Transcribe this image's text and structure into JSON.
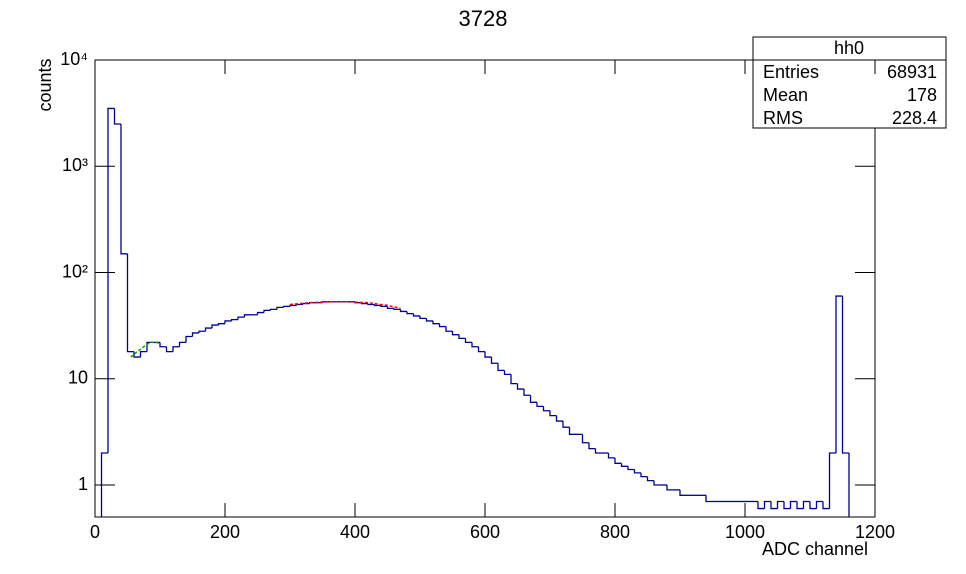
{
  "chart_data": {
    "type": "histogram",
    "title": "3728",
    "x_label": "ADC channel",
    "y_label": "counts",
    "bins": [
      0,
      10,
      20,
      30,
      40,
      50,
      60,
      70,
      80,
      90,
      100,
      110,
      120,
      130,
      140,
      150,
      160,
      170,
      180,
      190,
      200,
      210,
      220,
      230,
      240,
      250,
      260,
      270,
      280,
      290,
      300,
      310,
      320,
      330,
      340,
      350,
      360,
      370,
      380,
      390,
      400,
      410,
      420,
      430,
      440,
      450,
      460,
      470,
      480,
      490,
      500,
      510,
      520,
      530,
      540,
      550,
      560,
      570,
      580,
      590,
      600,
      610,
      620,
      630,
      640,
      650,
      660,
      670,
      680,
      690,
      700,
      710,
      720,
      730,
      740,
      750,
      760,
      770,
      780,
      790,
      800,
      810,
      820,
      830,
      840,
      850,
      860,
      870,
      880,
      890,
      900,
      910,
      920,
      930,
      940,
      950,
      960,
      970,
      980,
      990,
      1000,
      1010,
      1020,
      1030,
      1040,
      1050,
      1060,
      1070,
      1080,
      1090,
      1100,
      1110,
      1120,
      1130,
      1140,
      1150,
      1160,
      1170,
      1180,
      1190,
      1200
    ],
    "values": [
      0,
      2,
      3500,
      2500,
      150,
      18,
      16,
      18,
      22,
      22,
      20,
      18,
      20,
      22,
      25,
      27,
      28,
      30,
      32,
      33,
      35,
      36,
      38,
      40,
      40,
      42,
      44,
      45,
      47,
      48,
      49,
      50,
      51,
      52,
      52,
      53,
      53,
      53,
      53,
      53,
      52,
      51,
      50,
      49,
      48,
      46,
      45,
      43,
      41,
      39,
      37,
      35,
      33,
      31,
      28,
      26,
      24,
      22,
      20,
      18,
      16,
      14,
      12,
      11,
      9,
      8,
      7,
      6,
      5.5,
      5,
      4.5,
      4,
      3.5,
      3,
      3,
      2.5,
      2.2,
      2,
      2,
      1.8,
      1.6,
      1.5,
      1.4,
      1.3,
      1.2,
      1.1,
      1,
      1,
      0.9,
      0.9,
      0.8,
      0.8,
      0.8,
      0.8,
      0.7,
      0.7,
      0.7,
      0.7,
      0.7,
      0.7,
      0.7,
      0.7,
      0.6,
      0.7,
      0.6,
      0.7,
      0.6,
      0.7,
      0.6,
      0.7,
      0.6,
      0.7,
      0.6,
      2,
      60,
      2,
      0,
      0,
      0,
      0
    ],
    "color": "#000099",
    "fits": [
      {
        "color": "#ff0000",
        "x": [
          300,
          330,
          360,
          390,
          420,
          450,
          470
        ],
        "values": [
          50,
          52,
          53,
          53,
          52,
          49,
          46
        ]
      },
      {
        "color": "#00aa00",
        "x": [
          55,
          65,
          75,
          85,
          95,
          100
        ],
        "values": [
          16,
          18,
          20,
          22,
          22,
          21
        ]
      }
    ],
    "xlim": [
      0,
      1200
    ],
    "xticks": [
      0,
      200,
      400,
      600,
      800,
      1000,
      1200
    ],
    "ylim": [
      0.5,
      10000
    ],
    "log_y": true,
    "yticks": [
      1,
      10,
      {
        "value": 100,
        "label": "10²"
      },
      {
        "value": 1000,
        "label": "10³"
      },
      {
        "value": 10000,
        "label": "10⁴"
      }
    ],
    "stats": {
      "title": "hh0",
      "rows": [
        [
          "Entries",
          68931
        ],
        [
          "Mean",
          178
        ],
        [
          "RMS",
          228.4
        ]
      ]
    }
  }
}
